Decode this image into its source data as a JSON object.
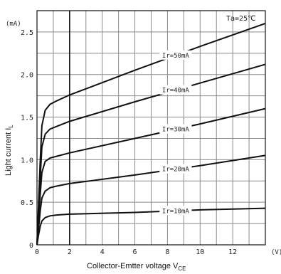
{
  "chart_data": {
    "type": "line",
    "xlabel": "Collector-Emtter voltage V",
    "xlabel_sub": "CE",
    "ylabel": "Light current I",
    "ylabel_sub": "L",
    "x_unit": "(V)",
    "y_unit": "(mA)",
    "annotation": "Ta=25℃",
    "xlim": [
      0,
      14
    ],
    "ylim": [
      0,
      2.75
    ],
    "x_ticks": [
      "0",
      "2",
      "4",
      "6",
      "8",
      "10",
      "12"
    ],
    "y_ticks": [
      "0",
      "0.5",
      "1.0",
      "1.5",
      "2.0",
      "2.5"
    ],
    "grid": true,
    "series": [
      {
        "name": "Ir=10mA",
        "x": [
          0,
          0.1,
          0.2,
          0.3,
          0.5,
          0.8,
          1.2,
          2,
          6,
          10,
          14
        ],
        "y": [
          0,
          0.12,
          0.22,
          0.28,
          0.32,
          0.34,
          0.35,
          0.36,
          0.38,
          0.41,
          0.43
        ]
      },
      {
        "name": "Ir=20mA",
        "x": [
          0,
          0.1,
          0.2,
          0.3,
          0.5,
          0.8,
          1.2,
          2,
          6,
          10,
          14
        ],
        "y": [
          0,
          0.2,
          0.4,
          0.55,
          0.63,
          0.67,
          0.69,
          0.72,
          0.82,
          0.93,
          1.05
        ]
      },
      {
        "name": "Ir=30mA",
        "x": [
          0,
          0.1,
          0.2,
          0.3,
          0.5,
          0.8,
          1.2,
          2,
          6,
          10,
          14
        ],
        "y": [
          0,
          0.3,
          0.6,
          0.85,
          0.98,
          1.02,
          1.04,
          1.08,
          1.25,
          1.42,
          1.6
        ]
      },
      {
        "name": "Ir=40mA",
        "x": [
          0,
          0.1,
          0.2,
          0.3,
          0.5,
          0.8,
          1.2,
          2,
          6,
          10,
          14
        ],
        "y": [
          0,
          0.4,
          0.8,
          1.15,
          1.3,
          1.36,
          1.39,
          1.45,
          1.68,
          1.9,
          2.12
        ]
      },
      {
        "name": "Ir=50mA",
        "x": [
          0,
          0.1,
          0.2,
          0.3,
          0.5,
          0.8,
          1.2,
          2,
          6,
          10,
          14
        ],
        "y": [
          0,
          0.5,
          1.0,
          1.4,
          1.58,
          1.65,
          1.69,
          1.76,
          2.05,
          2.33,
          2.6
        ]
      }
    ],
    "curve_labels": [
      {
        "series": "Ir=10mA",
        "x": 8.5
      },
      {
        "series": "Ir=20mA",
        "x": 8.5
      },
      {
        "series": "Ir=30mA",
        "x": 8.5
      },
      {
        "series": "Ir=40mA",
        "x": 8.5
      },
      {
        "series": "Ir=50mA",
        "x": 8.5
      }
    ],
    "line_color": "#111111",
    "grid_color": "#8a8a8a"
  }
}
